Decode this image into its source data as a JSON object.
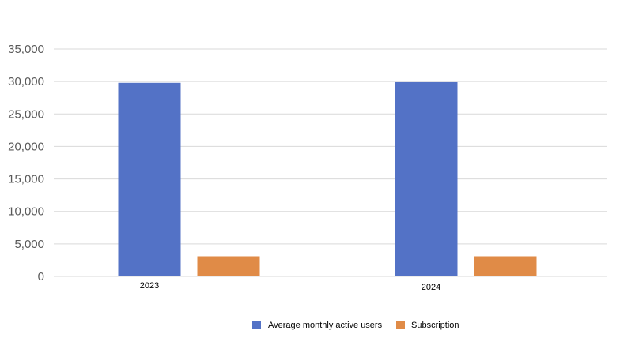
{
  "chart_data": {
    "type": "bar",
    "categories": [
      "2023",
      "2024"
    ],
    "series": [
      {
        "name": "Average monthly active users",
        "values": [
          29800,
          29900
        ],
        "color": "#5372C6"
      },
      {
        "name": "Subscription",
        "values": [
          3100,
          3100
        ],
        "color": "#E08B47"
      }
    ],
    "title": "",
    "xlabel": "",
    "ylabel": "",
    "ylim": [
      0,
      35000
    ],
    "yticks": [
      0,
      5000,
      10000,
      15000,
      20000,
      25000,
      30000,
      35000
    ],
    "ytick_labels": [
      "0",
      "5,000",
      "10,000",
      "15,000",
      "20,000",
      "25,000",
      "30,000",
      "35,000"
    ],
    "grid": true,
    "legend_position": "bottom"
  }
}
